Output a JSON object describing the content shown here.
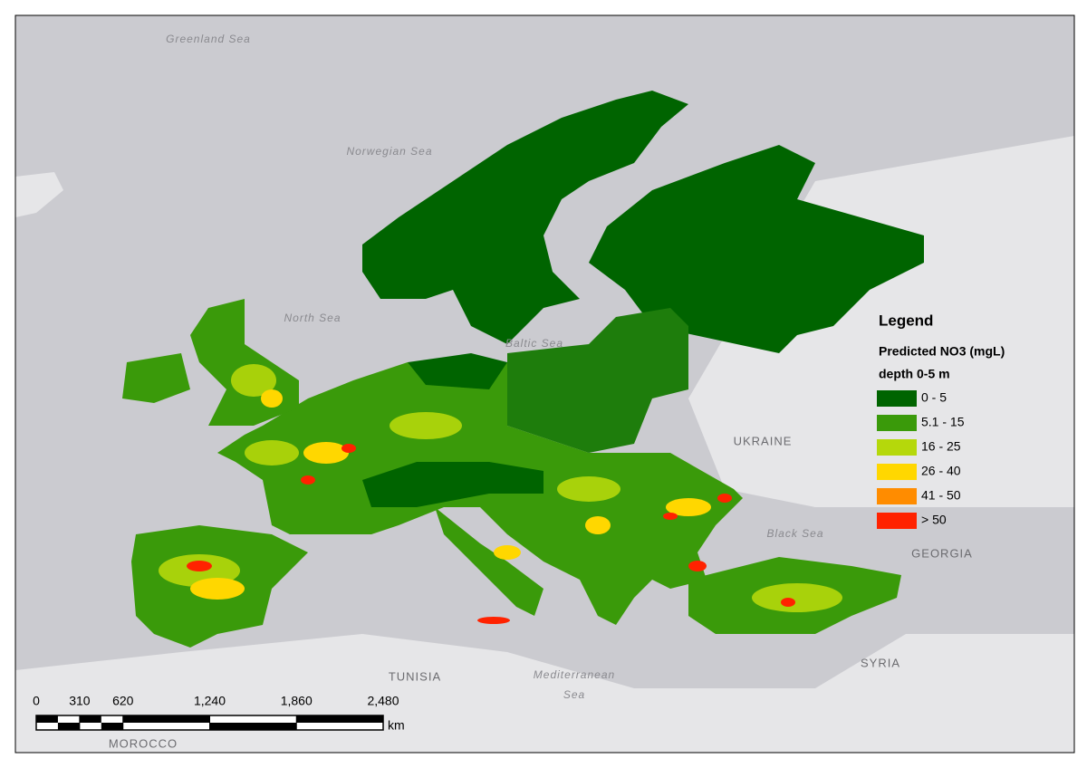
{
  "legend": {
    "title": "Legend",
    "heading": "Predicted NO3 (mgL)",
    "subheading": "depth 0-5 m",
    "items": [
      {
        "label": "0 - 5",
        "color": "#006400"
      },
      {
        "label": "5.1 - 15",
        "color": "#3a9a0a"
      },
      {
        "label": "16 - 25",
        "color": "#b5d80b"
      },
      {
        "label": "26 - 40",
        "color": "#ffd700"
      },
      {
        "label": "41 - 50",
        "color": "#ff8c00"
      },
      {
        "label": "> 50",
        "color": "#ff2200"
      }
    ]
  },
  "place_labels": [
    "Greenland Sea",
    "Norwegian Sea",
    "North Sea",
    "Baltic Sea",
    "UKRAINE",
    "Black Sea",
    "GEORGIA",
    "SYRIA",
    "TUNISIA",
    "Mediterranean",
    "Sea",
    "MOROCCO"
  ],
  "scale_bar": {
    "ticks": [
      0,
      310,
      620,
      {
        "value": 1240,
        "label": "1,240"
      },
      {
        "value": 1860,
        "label": "1,860"
      },
      {
        "value": 2480,
        "label": "2,480"
      }
    ],
    "unit": "km"
  }
}
